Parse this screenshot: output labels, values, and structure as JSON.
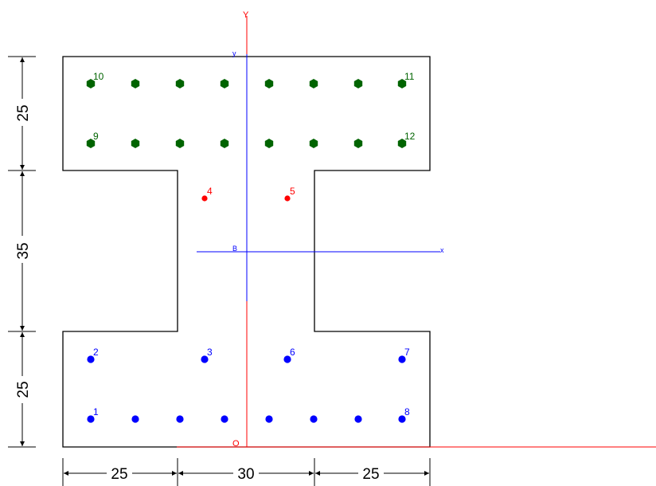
{
  "colors": {
    "outline": "#000000",
    "global_axis": "#ff0000",
    "local_axis": "#0000ff",
    "top_rebar": "#006400",
    "bottom_rebar": "#0000ff",
    "web_rebar": "#ff0000"
  },
  "axes": {
    "global_y_label": "Y",
    "origin_label": "O",
    "local_y_label": "y",
    "local_x_label": "x",
    "centroid_label": "B"
  },
  "dimensions": {
    "vertical": [
      {
        "id": "dim-top-flange",
        "text": "25"
      },
      {
        "id": "dim-web",
        "text": "35"
      },
      {
        "id": "dim-bottom-flange",
        "text": "25"
      }
    ],
    "horizontal": [
      {
        "id": "dim-left",
        "text": "25"
      },
      {
        "id": "dim-mid",
        "text": "30"
      },
      {
        "id": "dim-right",
        "text": "25"
      }
    ]
  },
  "points": {
    "top": [
      {
        "label": "10"
      },
      {
        "label": ""
      },
      {
        "label": ""
      },
      {
        "label": ""
      },
      {
        "label": ""
      },
      {
        "label": ""
      },
      {
        "label": ""
      },
      {
        "label": "11"
      },
      {
        "label": "9"
      },
      {
        "label": ""
      },
      {
        "label": ""
      },
      {
        "label": ""
      },
      {
        "label": ""
      },
      {
        "label": ""
      },
      {
        "label": ""
      },
      {
        "label": "12"
      }
    ],
    "web": [
      {
        "label": "4"
      },
      {
        "label": "5"
      }
    ],
    "bottom": [
      {
        "label": "2"
      },
      {
        "label": "3"
      },
      {
        "label": "6"
      },
      {
        "label": "7"
      },
      {
        "label": "1"
      },
      {
        "label": ""
      },
      {
        "label": ""
      },
      {
        "label": ""
      },
      {
        "label": ""
      },
      {
        "label": ""
      },
      {
        "label": ""
      },
      {
        "label": "8"
      }
    ]
  }
}
